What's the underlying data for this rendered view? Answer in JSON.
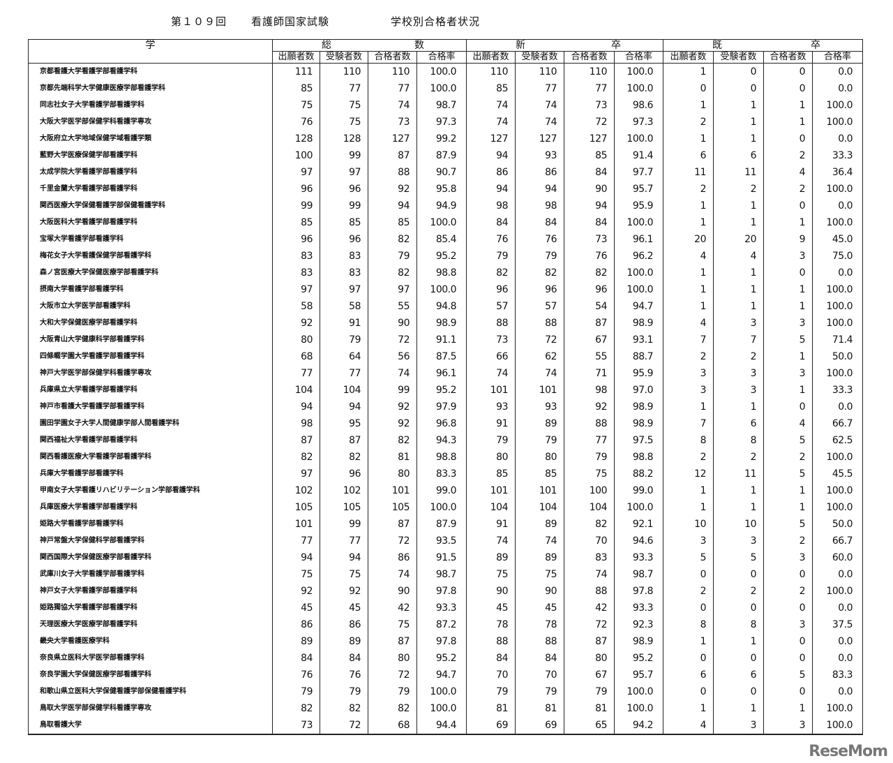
{
  "title": {
    "round": "第１０９回",
    "exam": "看護師国家試験",
    "subject": "学校別合格者状況"
  },
  "header": {
    "school": "学",
    "groups": [
      {
        "left": "総",
        "right": "数"
      },
      {
        "left": "新",
        "right": "卒"
      },
      {
        "left": "既",
        "right": "卒"
      }
    ],
    "columns": [
      "出願者数",
      "受験者数",
      "合格者数",
      "合格率"
    ]
  },
  "rows": [
    [
      "京都看護大学看護学部看護学科",
      "111",
      "110",
      "110",
      "100.0",
      "110",
      "110",
      "110",
      "100.0",
      "1",
      "0",
      "0",
      "0.0"
    ],
    [
      "京都先端科学大学健康医療学部看護学科",
      "85",
      "77",
      "77",
      "100.0",
      "85",
      "77",
      "77",
      "100.0",
      "0",
      "0",
      "0",
      "0.0"
    ],
    [
      "同志社女子大学看護学部看護学科",
      "75",
      "75",
      "74",
      "98.7",
      "74",
      "74",
      "73",
      "98.6",
      "1",
      "1",
      "1",
      "100.0"
    ],
    [
      "大阪大学医学部保健学科看護学専攻",
      "76",
      "75",
      "73",
      "97.3",
      "74",
      "74",
      "72",
      "97.3",
      "2",
      "1",
      "1",
      "100.0"
    ],
    [
      "大阪府立大学地域保健学域看護学類",
      "128",
      "128",
      "127",
      "99.2",
      "127",
      "127",
      "127",
      "100.0",
      "1",
      "1",
      "0",
      "0.0"
    ],
    [
      "藍野大学医療保健学部看護学科",
      "100",
      "99",
      "87",
      "87.9",
      "94",
      "93",
      "85",
      "91.4",
      "6",
      "6",
      "2",
      "33.3"
    ],
    [
      "太成学院大学看護学部看護学科",
      "97",
      "97",
      "88",
      "90.7",
      "86",
      "86",
      "84",
      "97.7",
      "11",
      "11",
      "4",
      "36.4"
    ],
    [
      "千里金蘭大学看護学部看護学科",
      "96",
      "96",
      "92",
      "95.8",
      "94",
      "94",
      "90",
      "95.7",
      "2",
      "2",
      "2",
      "100.0"
    ],
    [
      "関西医療大学保健看護学部保健看護学科",
      "99",
      "99",
      "94",
      "94.9",
      "98",
      "98",
      "94",
      "95.9",
      "1",
      "1",
      "0",
      "0.0"
    ],
    [
      "大阪医科大学看護学部看護学科",
      "85",
      "85",
      "85",
      "100.0",
      "84",
      "84",
      "84",
      "100.0",
      "1",
      "1",
      "1",
      "100.0"
    ],
    [
      "宝塚大学看護学部看護学科",
      "96",
      "96",
      "82",
      "85.4",
      "76",
      "76",
      "73",
      "96.1",
      "20",
      "20",
      "9",
      "45.0"
    ],
    [
      "梅花女子大学看護保健学部看護学科",
      "83",
      "83",
      "79",
      "95.2",
      "79",
      "79",
      "76",
      "96.2",
      "4",
      "4",
      "3",
      "75.0"
    ],
    [
      "森ノ宮医療大学保健医療学部看護学科",
      "83",
      "83",
      "82",
      "98.8",
      "82",
      "82",
      "82",
      "100.0",
      "1",
      "1",
      "0",
      "0.0"
    ],
    [
      "摂南大学看護学部看護学科",
      "97",
      "97",
      "97",
      "100.0",
      "96",
      "96",
      "96",
      "100.0",
      "1",
      "1",
      "1",
      "100.0"
    ],
    [
      "大阪市立大学医学部看護学科",
      "58",
      "58",
      "55",
      "94.8",
      "57",
      "57",
      "54",
      "94.7",
      "1",
      "1",
      "1",
      "100.0"
    ],
    [
      "大和大学保健医療学部看護学科",
      "92",
      "91",
      "90",
      "98.9",
      "88",
      "88",
      "87",
      "98.9",
      "4",
      "3",
      "3",
      "100.0"
    ],
    [
      "大阪青山大学健康科学部看護学科",
      "80",
      "79",
      "72",
      "91.1",
      "73",
      "72",
      "67",
      "93.1",
      "7",
      "7",
      "5",
      "71.4"
    ],
    [
      "四條畷学園大学看護学部看護学科",
      "68",
      "64",
      "56",
      "87.5",
      "66",
      "62",
      "55",
      "88.7",
      "2",
      "2",
      "1",
      "50.0"
    ],
    [
      "神戸大学医学部保健学科看護学専攻",
      "77",
      "77",
      "74",
      "96.1",
      "74",
      "74",
      "71",
      "95.9",
      "3",
      "3",
      "3",
      "100.0"
    ],
    [
      "兵庫県立大学看護学部看護学科",
      "104",
      "104",
      "99",
      "95.2",
      "101",
      "101",
      "98",
      "97.0",
      "3",
      "3",
      "1",
      "33.3"
    ],
    [
      "神戸市看護大学看護学部看護学科",
      "94",
      "94",
      "92",
      "97.9",
      "93",
      "93",
      "92",
      "98.9",
      "1",
      "1",
      "0",
      "0.0"
    ],
    [
      "園田学園女子大学人間健康学部人間看護学科",
      "98",
      "95",
      "92",
      "96.8",
      "91",
      "89",
      "88",
      "98.9",
      "7",
      "6",
      "4",
      "66.7"
    ],
    [
      "関西福祉大学看護学部看護学科",
      "87",
      "87",
      "82",
      "94.3",
      "79",
      "79",
      "77",
      "97.5",
      "8",
      "8",
      "5",
      "62.5"
    ],
    [
      "関西看護医療大学看護学部看護学科",
      "82",
      "82",
      "81",
      "98.8",
      "80",
      "80",
      "79",
      "98.8",
      "2",
      "2",
      "2",
      "100.0"
    ],
    [
      "兵庫大学看護学部看護学科",
      "97",
      "96",
      "80",
      "83.3",
      "85",
      "85",
      "75",
      "88.2",
      "12",
      "11",
      "5",
      "45.5"
    ],
    [
      "甲南女子大学看護リハビリテーション学部看護学科",
      "102",
      "102",
      "101",
      "99.0",
      "101",
      "101",
      "100",
      "99.0",
      "1",
      "1",
      "1",
      "100.0"
    ],
    [
      "兵庫医療大学看護学部看護学科",
      "105",
      "105",
      "105",
      "100.0",
      "104",
      "104",
      "104",
      "100.0",
      "1",
      "1",
      "1",
      "100.0"
    ],
    [
      "姫路大学看護学部看護学科",
      "101",
      "99",
      "87",
      "87.9",
      "91",
      "89",
      "82",
      "92.1",
      "10",
      "10",
      "5",
      "50.0"
    ],
    [
      "神戸常盤大学保健科学部看護学科",
      "77",
      "77",
      "72",
      "93.5",
      "74",
      "74",
      "70",
      "94.6",
      "3",
      "3",
      "2",
      "66.7"
    ],
    [
      "関西国際大学保健医療学部看護学科",
      "94",
      "94",
      "86",
      "91.5",
      "89",
      "89",
      "83",
      "93.3",
      "5",
      "5",
      "3",
      "60.0"
    ],
    [
      "武庫川女子大学看護学部看護学科",
      "75",
      "75",
      "74",
      "98.7",
      "75",
      "75",
      "74",
      "98.7",
      "0",
      "0",
      "0",
      "0.0"
    ],
    [
      "神戸女子大学看護学部看護学科",
      "92",
      "92",
      "90",
      "97.8",
      "90",
      "90",
      "88",
      "97.8",
      "2",
      "2",
      "2",
      "100.0"
    ],
    [
      "姫路獨協大学看護学部看護学科",
      "45",
      "45",
      "42",
      "93.3",
      "45",
      "45",
      "42",
      "93.3",
      "0",
      "0",
      "0",
      "0.0"
    ],
    [
      "天理医療大学医療学部看護学科",
      "86",
      "86",
      "75",
      "87.2",
      "78",
      "78",
      "72",
      "92.3",
      "8",
      "8",
      "3",
      "37.5"
    ],
    [
      "畿央大学看護医療学科",
      "89",
      "89",
      "87",
      "97.8",
      "88",
      "88",
      "87",
      "98.9",
      "1",
      "1",
      "0",
      "0.0"
    ],
    [
      "奈良県立医科大学医学部看護学科",
      "84",
      "84",
      "80",
      "95.2",
      "84",
      "84",
      "80",
      "95.2",
      "0",
      "0",
      "0",
      "0.0"
    ],
    [
      "奈良学園大学保健医療学部看護学科",
      "76",
      "76",
      "72",
      "94.7",
      "70",
      "70",
      "67",
      "95.7",
      "6",
      "6",
      "5",
      "83.3"
    ],
    [
      "和歌山県立医科大学保健看護学部保健看護学科",
      "79",
      "79",
      "79",
      "100.0",
      "79",
      "79",
      "79",
      "100.0",
      "0",
      "0",
      "0",
      "0.0"
    ],
    [
      "鳥取大学医学部保健学科看護学専攻",
      "82",
      "82",
      "82",
      "100.0",
      "81",
      "81",
      "81",
      "100.0",
      "1",
      "1",
      "1",
      "100.0"
    ],
    [
      "鳥取看護大学",
      "73",
      "72",
      "68",
      "94.4",
      "69",
      "69",
      "65",
      "94.2",
      "4",
      "3",
      "3",
      "100.0"
    ]
  ],
  "watermark": "ReseMom"
}
